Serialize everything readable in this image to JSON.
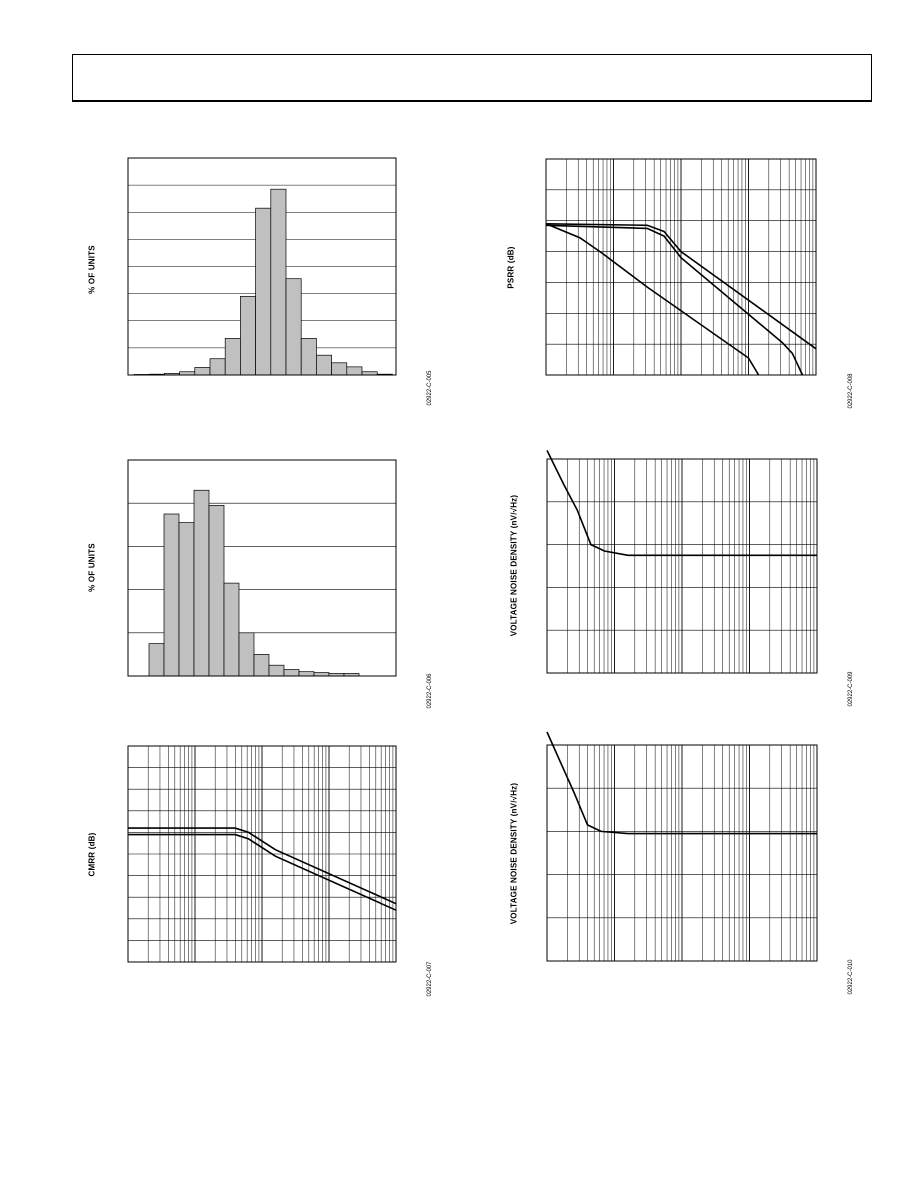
{
  "chart_data": [
    {
      "id": "hist1",
      "type": "bar",
      "ylabel": "% OF UNITS",
      "figure_id": "02922-C-005",
      "values": [
        0.2,
        0.3,
        0.6,
        1.2,
        2.8,
        6.0,
        13.5,
        29.0,
        61.5,
        68.5,
        35.5,
        13.5,
        7.3,
        4.5,
        3.0,
        1.2,
        0.3
      ],
      "ylim": [
        0,
        80
      ],
      "grid_y": true,
      "color": "#c0c0c0"
    },
    {
      "id": "hist2",
      "type": "bar",
      "ylabel": "% OF UNITS",
      "figure_id": "02922-C-006",
      "values": [
        7.5,
        37.5,
        35.5,
        43,
        39.5,
        21.5,
        10,
        5,
        2.5,
        1.5,
        1.0,
        0.8,
        0.6,
        0.6
      ],
      "ylim": [
        0,
        50
      ],
      "grid_y": true,
      "color": "#c0c0c0"
    },
    {
      "id": "cmrr",
      "type": "line",
      "ylabel": "CMRR (dB)",
      "figure_id": "02922-C-007",
      "x_scale": "log",
      "decades": 4,
      "y_divisions": 10,
      "series": [
        {
          "values": [
            [
              0,
              6.2
            ],
            [
              1.6,
              6.2
            ],
            [
              1.8,
              6.0
            ],
            [
              2.2,
              5.2
            ],
            [
              4,
              2.7
            ]
          ]
        },
        {
          "values": [
            [
              0,
              5.9
            ],
            [
              1.6,
              5.9
            ],
            [
              1.8,
              5.7
            ],
            [
              2.2,
              4.9
            ],
            [
              4,
              2.4
            ]
          ]
        }
      ]
    },
    {
      "id": "psrr",
      "type": "line",
      "ylabel": "PSRR (dB)",
      "figure_id": "02922-C-008",
      "x_scale": "log",
      "decades": 4,
      "y_divisions": 7,
      "series": [
        {
          "values": [
            [
              0,
              4.9
            ],
            [
              1.5,
              4.85
            ],
            [
              1.75,
              4.65
            ],
            [
              2.0,
              4.0
            ],
            [
              4,
              0.85
            ]
          ]
        },
        {
          "values": [
            [
              0,
              4.85
            ],
            [
              1.5,
              4.75
            ],
            [
              1.75,
              4.5
            ],
            [
              2.0,
              3.8
            ],
            [
              3.5,
              1.05
            ],
            [
              3.65,
              0.7
            ],
            [
              3.8,
              0
            ]
          ]
        },
        {
          "values": [
            [
              0,
              4.9
            ],
            [
              0.5,
              4.45
            ],
            [
              0.8,
              4.0
            ],
            [
              1.5,
              2.85
            ],
            [
              3.0,
              0.55
            ],
            [
              3.15,
              0
            ]
          ]
        }
      ]
    },
    {
      "id": "noise1",
      "type": "line",
      "ylabel": "VOLTAGE NOISE DENSITY (nV/√Hz)",
      "figure_id": "02922-C-009",
      "x_scale": "log",
      "decades": 4,
      "y_divisions": 5,
      "series": [
        {
          "values": [
            [
              0,
              5.2
            ],
            [
              0.25,
              4.4
            ],
            [
              0.45,
              3.8
            ],
            [
              0.65,
              3.0
            ],
            [
              0.85,
              2.85
            ],
            [
              1.2,
              2.75
            ],
            [
              4,
              2.75
            ]
          ]
        }
      ]
    },
    {
      "id": "noise2",
      "type": "line",
      "ylabel": "VOLTAGE NOISE DENSITY (nV/√Hz)",
      "figure_id": "02922-C-010",
      "x_scale": "log",
      "decades": 4,
      "y_divisions": 5,
      "series": [
        {
          "values": [
            [
              0,
              5.3
            ],
            [
              0.2,
              4.6
            ],
            [
              0.4,
              3.9
            ],
            [
              0.6,
              3.15
            ],
            [
              0.8,
              3.0
            ],
            [
              1.2,
              2.95
            ],
            [
              4,
              2.95
            ]
          ]
        }
      ]
    }
  ]
}
